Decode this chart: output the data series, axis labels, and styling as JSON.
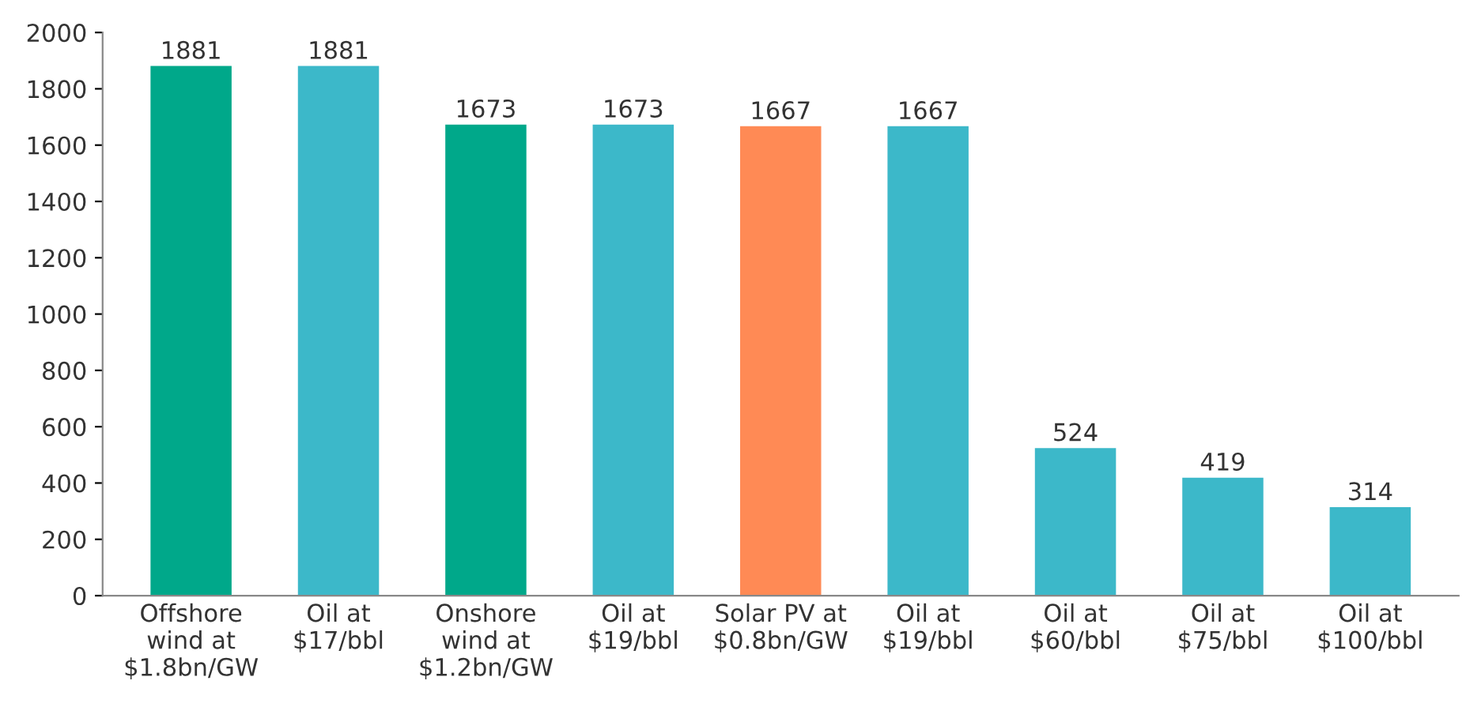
{
  "chart_data": {
    "type": "bar",
    "categories": [
      "Offshore\nwind at\n$1.8bn/GW",
      "Oil at\n$17/bbl",
      "Onshore\nwind at\n$1.2bn/GW",
      "Oil at\n$19/bbl",
      "Solar PV at\n$0.8bn/GW",
      "Oil at\n$19/bbl",
      "Oil at\n$60/bbl",
      "Oil at\n$75/bbl",
      "Oil at\n$100/bbl"
    ],
    "values": [
      1881,
      1881,
      1673,
      1673,
      1667,
      1667,
      524,
      419,
      314
    ],
    "colors": [
      "#00a88a",
      "#3cb8c9",
      "#00a88a",
      "#3cb8c9",
      "#ff8a55",
      "#3cb8c9",
      "#3cb8c9",
      "#3cb8c9",
      "#3cb8c9"
    ],
    "ylim": [
      0,
      2000
    ],
    "yticks": [
      0,
      200,
      400,
      600,
      800,
      1000,
      1200,
      1400,
      1600,
      1800,
      2000
    ],
    "data_labels": true,
    "grid": false,
    "legend": false
  }
}
